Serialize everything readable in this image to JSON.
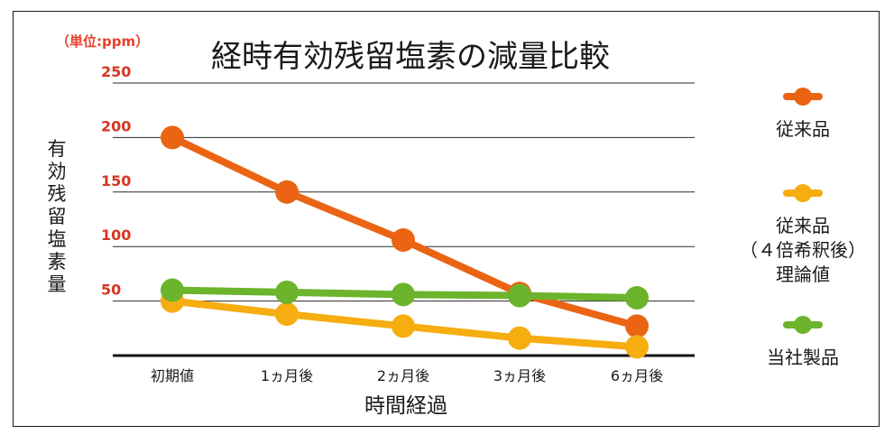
{
  "chart_data": {
    "type": "line",
    "title": "経時有効残留塩素の減量比較",
    "unit_note": "（単位:ppm）",
    "xlabel": "時間経過",
    "ylabel": "有効残留塩素量",
    "categories": [
      "初期値",
      "1ヵ月後",
      "2ヵ月後",
      "3ヵ月後",
      "6ヵ月後"
    ],
    "y_ticks": [
      "50",
      "100",
      "150",
      "200",
      "250"
    ],
    "ylim": [
      0,
      250
    ],
    "grid": true,
    "legend_position": "right",
    "series": [
      {
        "name": "従来品",
        "name_lines": [
          "従来品"
        ],
        "color": "#ea6413",
        "values": [
          200,
          150,
          106,
          57,
          27
        ]
      },
      {
        "name": "従来品（４倍希釈後）理論値",
        "name_lines": [
          "従来品",
          "（４倍希釈後）",
          "理論値"
        ],
        "color": "#f6ad10",
        "values": [
          50,
          38,
          27,
          16,
          8
        ]
      },
      {
        "name": "当社製品",
        "name_lines": [
          "当社製品"
        ],
        "color": "#6bb42c",
        "values": [
          60,
          58,
          56,
          55,
          53
        ]
      }
    ]
  }
}
